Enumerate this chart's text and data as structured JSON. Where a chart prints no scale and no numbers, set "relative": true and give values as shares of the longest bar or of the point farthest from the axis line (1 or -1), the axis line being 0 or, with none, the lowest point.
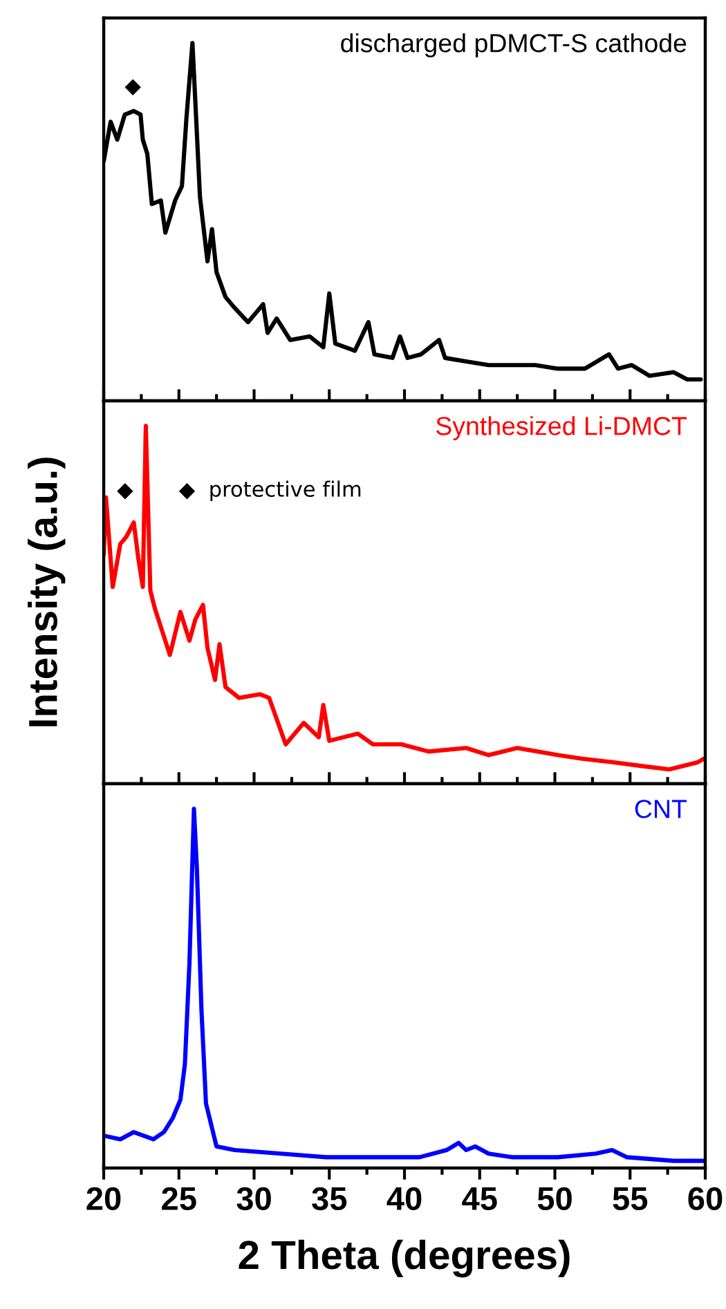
{
  "chart_data": [
    {
      "type": "line",
      "relative": true,
      "xlim": [
        20,
        60
      ],
      "xticks": [
        20,
        25,
        30,
        35,
        40,
        45,
        50,
        55,
        60
      ],
      "tick_labels": false,
      "x": [
        20.0,
        20.46,
        20.9,
        21.4,
        22.0,
        22.45,
        22.6,
        22.9,
        23.2,
        23.8,
        24.1,
        24.75,
        25.2,
        25.5,
        25.9,
        26.1,
        26.4,
        26.9,
        27.2,
        27.5,
        28.1,
        28.7,
        29.6,
        30.6,
        30.9,
        31.5,
        32.4,
        33.7,
        34.6,
        35.0,
        35.4,
        36.7,
        37.6,
        38.0,
        39.2,
        39.7,
        40.2,
        41.1,
        42.3,
        42.7,
        44.1,
        45.6,
        47.2,
        48.7,
        50.2,
        52.0,
        53.6,
        54.2,
        55.1,
        56.3,
        57.9,
        58.8,
        59.7
      ],
      "series": [
        {
          "name": "discharged pDMCT-S cathode",
          "color": "#000000",
          "values": [
            0.67,
            0.78,
            0.73,
            0.8,
            0.81,
            0.8,
            0.73,
            0.69,
            0.55,
            0.56,
            0.47,
            0.56,
            0.6,
            0.79,
            1.0,
            0.83,
            0.57,
            0.39,
            0.48,
            0.36,
            0.29,
            0.26,
            0.22,
            0.27,
            0.19,
            0.23,
            0.17,
            0.18,
            0.15,
            0.3,
            0.16,
            0.14,
            0.22,
            0.13,
            0.12,
            0.18,
            0.12,
            0.13,
            0.17,
            0.12,
            0.11,
            0.1,
            0.1,
            0.1,
            0.09,
            0.09,
            0.13,
            0.09,
            0.1,
            0.07,
            0.08,
            0.06,
            0.06
          ]
        }
      ],
      "annotations": [
        "◆"
      ]
    },
    {
      "type": "line",
      "relative": true,
      "xlim": [
        20,
        60
      ],
      "xticks": [
        20,
        25,
        30,
        35,
        40,
        45,
        50,
        55,
        60
      ],
      "tick_labels": false,
      "ylabel": "Intensity (a.u.)",
      "x": [
        20.0,
        20.15,
        20.6,
        21.1,
        21.5,
        22.0,
        22.3,
        22.6,
        22.8,
        23.1,
        23.4,
        24.4,
        25.1,
        25.7,
        26.1,
        26.6,
        26.9,
        27.4,
        27.7,
        28.1,
        29.0,
        30.4,
        31.0,
        32.1,
        33.3,
        34.3,
        34.6,
        35.0,
        36.9,
        37.9,
        39.8,
        41.6,
        44.1,
        45.6,
        47.5,
        50.2,
        51.8,
        53.9,
        55.7,
        57.6,
        59.5,
        59.9
      ],
      "series": [
        {
          "name": "Synthesized Li-DMCT",
          "color": "#ff0000",
          "values": [
            0.64,
            0.8,
            0.55,
            0.67,
            0.69,
            0.73,
            0.63,
            0.55,
            1.0,
            0.54,
            0.49,
            0.36,
            0.48,
            0.4,
            0.46,
            0.5,
            0.38,
            0.29,
            0.39,
            0.27,
            0.24,
            0.25,
            0.24,
            0.11,
            0.17,
            0.13,
            0.22,
            0.12,
            0.14,
            0.11,
            0.11,
            0.09,
            0.1,
            0.08,
            0.1,
            0.08,
            0.07,
            0.06,
            0.05,
            0.04,
            0.06,
            0.07
          ]
        }
      ],
      "annotations": [
        "◆",
        "◆  protective film"
      ]
    },
    {
      "type": "line",
      "relative": true,
      "xlim": [
        20,
        60
      ],
      "xticks": [
        20,
        25,
        30,
        35,
        40,
        45,
        50,
        55,
        60
      ],
      "tick_labels": "x",
      "xlabel": "2 Theta (degrees)",
      "x": [
        20.0,
        21.1,
        22.0,
        23.3,
        24.0,
        24.6,
        25.1,
        25.4,
        25.7,
        26.0,
        26.2,
        26.5,
        26.8,
        27.5,
        28.7,
        31.8,
        34.8,
        37.9,
        41.0,
        42.8,
        43.6,
        44.1,
        44.7,
        45.6,
        47.2,
        50.2,
        52.7,
        53.8,
        54.8,
        57.9,
        59.9
      ],
      "series": [
        {
          "name": "CNT",
          "color": "#0000ff",
          "values": [
            0.09,
            0.08,
            0.1,
            0.08,
            0.1,
            0.14,
            0.19,
            0.29,
            0.57,
            1.0,
            0.83,
            0.44,
            0.18,
            0.06,
            0.05,
            0.04,
            0.03,
            0.03,
            0.03,
            0.05,
            0.07,
            0.05,
            0.06,
            0.04,
            0.03,
            0.03,
            0.04,
            0.05,
            0.03,
            0.02,
            0.02
          ]
        }
      ]
    }
  ]
}
